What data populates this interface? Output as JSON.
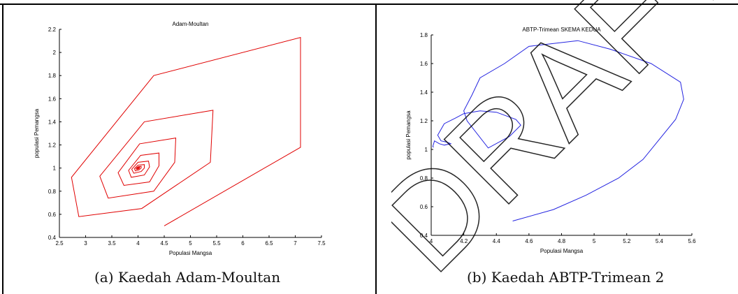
{
  "chart_data": [
    {
      "type": "line",
      "title": "Adam-Moultan",
      "xlabel": "Populasi Mangsa",
      "ylabel": "populasi Pemangsa",
      "xlim": [
        2.5,
        7.5
      ],
      "ylim": [
        0.4,
        2.2
      ],
      "xticks": [
        "2.5",
        "3",
        "3.5",
        "4",
        "4.5",
        "5",
        "5.5",
        "6",
        "6.5",
        "7",
        "7.5"
      ],
      "yticks": [
        "0.4",
        "0.6",
        "0.8",
        "1",
        "1.2",
        "1.4",
        "1.6",
        "1.8",
        "2",
        "2.2"
      ],
      "grid": false,
      "color": "#e00000",
      "series": [
        {
          "x": [
            4.5,
            7.1,
            7.1,
            4.3,
            2.73,
            2.87,
            4.07,
            5.38,
            5.43,
            4.12,
            3.27,
            3.43,
            4.3,
            4.7,
            4.72,
            4.03,
            3.62,
            3.73,
            4.22,
            4.4,
            4.4,
            4.05,
            3.82,
            3.87,
            4.12,
            4.22,
            4.2,
            4.0,
            3.88,
            3.92,
            4.06,
            4.12,
            4.12,
            4.0,
            3.93,
            3.95,
            4.02,
            4.06,
            4.06,
            4.0,
            3.96,
            3.97,
            4.01,
            4.03,
            4.03,
            4.0,
            3.98,
            3.99,
            4.01,
            4.02,
            4.0
          ],
          "y": [
            0.5,
            1.18,
            2.13,
            1.8,
            0.92,
            0.58,
            0.65,
            1.05,
            1.5,
            1.4,
            0.93,
            0.74,
            0.8,
            1.05,
            1.26,
            1.21,
            0.96,
            0.85,
            0.88,
            1.02,
            1.13,
            1.11,
            0.98,
            0.92,
            0.94,
            1.01,
            1.06,
            1.05,
            0.99,
            0.955,
            0.97,
            1.0,
            1.03,
            1.025,
            0.995,
            0.975,
            0.985,
            1.0,
            1.015,
            1.012,
            0.997,
            0.988,
            0.992,
            1.0,
            1.007,
            1.005,
            0.998,
            0.994,
            0.997,
            1.0,
            1.0
          ]
        }
      ],
      "caption": "(a)  Kaedah Adam-Moultan"
    },
    {
      "type": "line",
      "title": "ABTP-Trimean SKEMA KEDUA",
      "xlabel": "Populasi Mangsa",
      "ylabel": "populasi Pemangsa",
      "xlim": [
        4,
        5.6
      ],
      "ylim": [
        0.4,
        1.8
      ],
      "xticks": [
        "4",
        "4.2",
        "4.4",
        "4.6",
        "4.8",
        "5",
        "5.2",
        "5.4",
        "5.6"
      ],
      "yticks": [
        "0.4",
        "0.6",
        "0.8",
        "1",
        "1.2",
        "1.4",
        "1.6",
        "1.8"
      ],
      "grid": false,
      "color": "#2323e0",
      "series": [
        {
          "x": [
            4.5,
            4.75,
            4.95,
            5.15,
            5.3,
            5.5,
            5.55,
            5.53,
            5.35,
            5.1,
            4.9,
            4.6,
            4.45,
            4.3,
            4.25,
            4.2,
            4.22,
            4.35,
            4.48,
            4.55,
            4.52,
            4.4,
            4.3,
            4.2,
            4.15,
            4.08,
            4.04,
            4.06,
            4.1,
            4.12,
            4.08,
            4.05,
            4.02,
            4.01,
            4.015
          ],
          "y": [
            0.5,
            0.58,
            0.68,
            0.8,
            0.93,
            1.21,
            1.35,
            1.47,
            1.6,
            1.7,
            1.76,
            1.72,
            1.6,
            1.5,
            1.38,
            1.27,
            1.2,
            1.01,
            1.09,
            1.17,
            1.21,
            1.26,
            1.27,
            1.25,
            1.22,
            1.18,
            1.1,
            1.06,
            1.05,
            1.04,
            1.03,
            1.04,
            1.06,
            1.02,
            1.015
          ]
        }
      ],
      "caption": "(b)  Kaedah ABTP-Trimean 2"
    }
  ]
}
